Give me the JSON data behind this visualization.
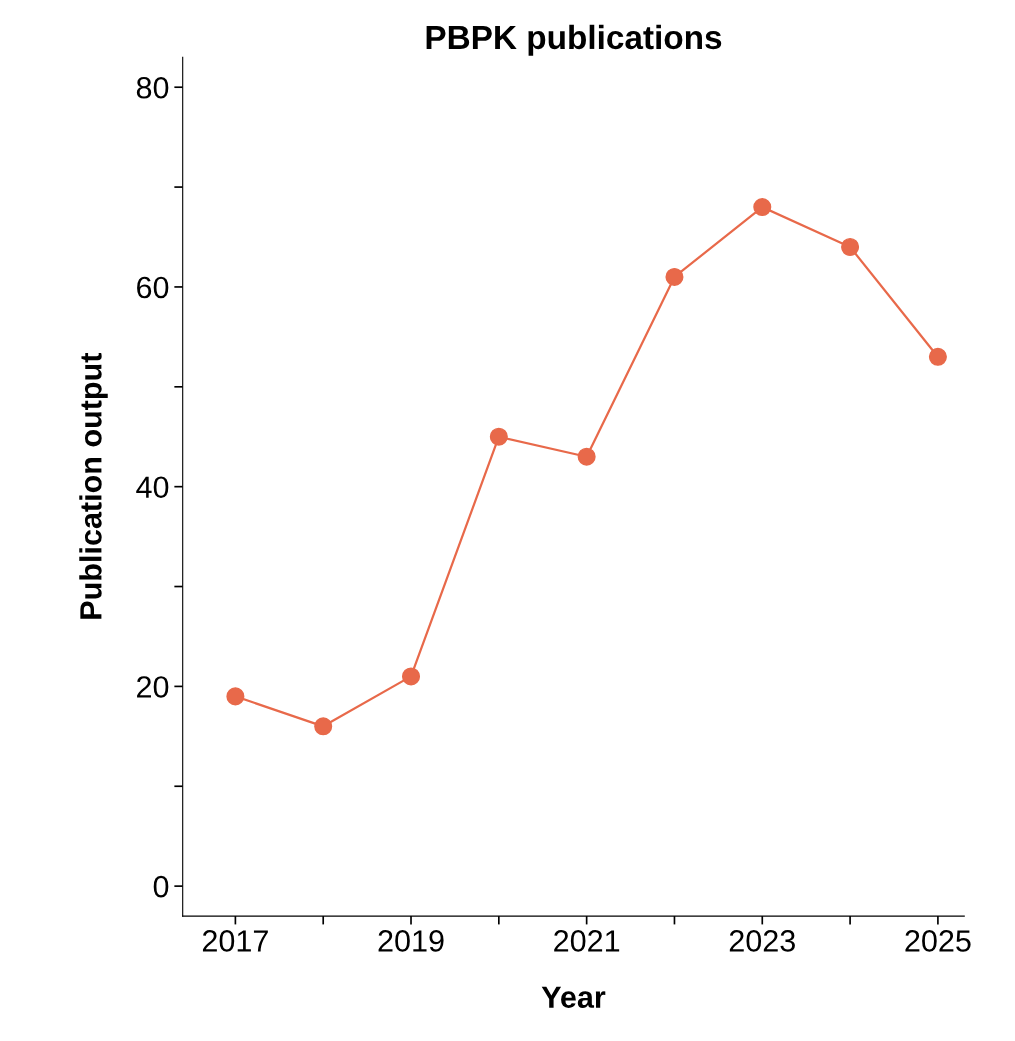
{
  "chart_data": {
    "type": "line",
    "title": "PBPK publications",
    "xlabel": "Year",
    "ylabel": "Publication output",
    "x": [
      2017,
      2018,
      2019,
      2020,
      2021,
      2022,
      2023,
      2024,
      2025
    ],
    "series": [
      {
        "color": "#e8694a",
        "values": [
          19,
          16,
          21,
          45,
          43,
          61,
          68,
          64,
          53
        ]
      }
    ],
    "xlim": [
      2016.4,
      2025.3
    ],
    "xticks": [
      2017,
      {
        "value": 2018,
        "label": null
      },
      2019,
      {
        "value": 2020,
        "label": null
      },
      2021,
      {
        "value": 2022,
        "label": null
      },
      2023,
      {
        "value": 2024,
        "label": null
      },
      2025
    ],
    "ylim": [
      -3,
      83
    ],
    "yticks": [
      0,
      {
        "value": 10,
        "label": null
      },
      20,
      {
        "value": 30,
        "label": null
      },
      40,
      {
        "value": 50,
        "label": null
      },
      60,
      {
        "value": 70,
        "label": null
      },
      80
    ],
    "marker": "circle",
    "line_style": "solid",
    "grid": false,
    "legend": false
  }
}
